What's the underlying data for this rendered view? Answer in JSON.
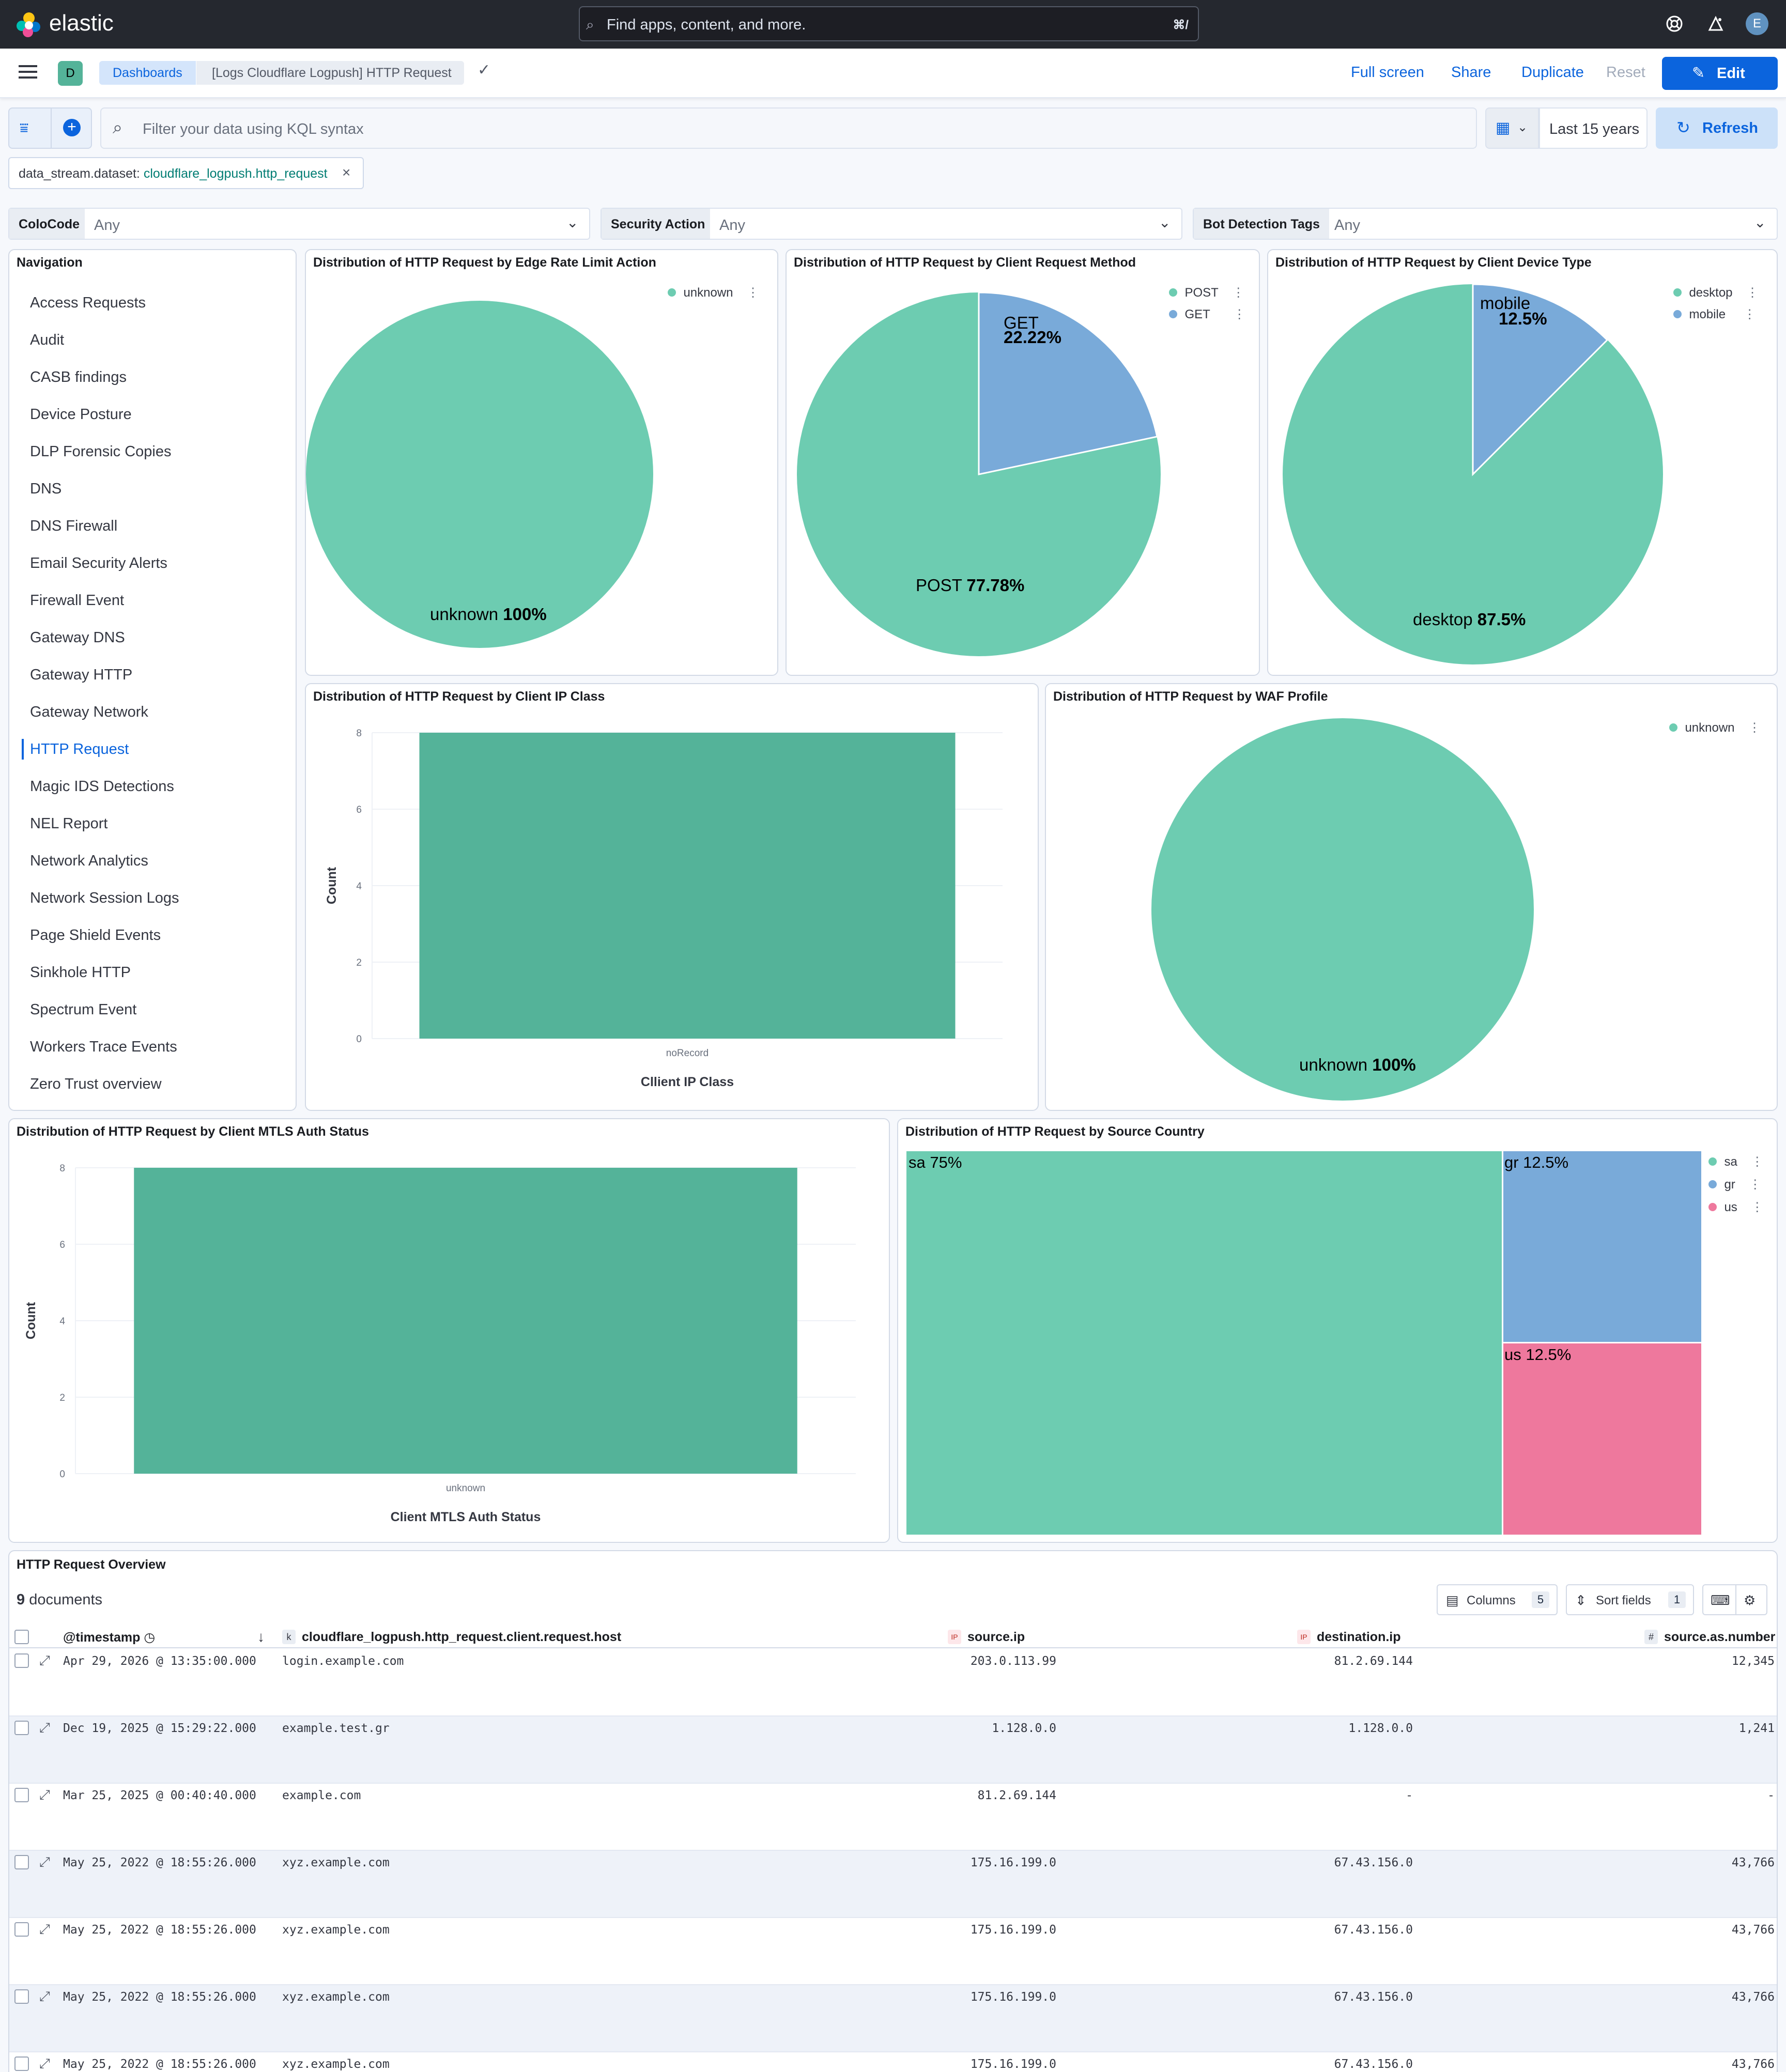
{
  "topbar": {
    "brand": "elastic",
    "search_placeholder": "Find apps, content, and more.",
    "search_shortcut": "⌘/",
    "user_initial": "E"
  },
  "subbar": {
    "space_initial": "D",
    "breadcrumb_root": "Dashboards",
    "breadcrumb_current": "[Logs Cloudflare Logpush] HTTP Request",
    "full_screen": "Full screen",
    "share": "Share",
    "duplicate": "Duplicate",
    "reset": "Reset",
    "edit": "Edit"
  },
  "query": {
    "placeholder": "Filter your data using KQL syntax",
    "time_range": "Last 15 years",
    "refresh": "Refresh",
    "filter_pill_key": "data_stream.dataset: ",
    "filter_pill_value": "cloudflare_logpush.http_request"
  },
  "controls": [
    {
      "label": "ColoCode",
      "value": "Any"
    },
    {
      "label": "Security Action",
      "value": "Any"
    },
    {
      "label": "Bot Detection Tags",
      "value": "Any"
    }
  ],
  "navigation": {
    "title": "Navigation",
    "active": "HTTP Request",
    "items": [
      "Access Requests",
      "Audit",
      "CASB findings",
      "Device Posture",
      "DLP Forensic Copies",
      "DNS",
      "DNS Firewall",
      "Email Security Alerts",
      "Firewall Event",
      "Gateway DNS",
      "Gateway HTTP",
      "Gateway Network",
      "HTTP Request",
      "Magic IDS Detections",
      "NEL Report",
      "Network Analytics",
      "Network Session Logs",
      "Page Shield Events",
      "Sinkhole HTTP",
      "Spectrum Event",
      "Workers Trace Events",
      "Zero Trust overview"
    ]
  },
  "colors": {
    "green": "#6dccb1",
    "blue": "#79aad9",
    "pink": "#ee789d",
    "bar": "#54b399",
    "accent": "#0b64dd"
  },
  "chart_data": [
    {
      "type": "pie",
      "title": "Distribution of HTTP Request by Edge Rate Limit Action",
      "labels": [
        "unknown"
      ],
      "values": [
        100
      ],
      "slice_texts": [
        "unknown 100%"
      ]
    },
    {
      "type": "pie",
      "title": "Distribution of HTTP Request by Client Request Method",
      "labels": [
        "POST",
        "GET"
      ],
      "values": [
        77.78,
        22.22
      ],
      "slice_texts": [
        "POST 77.78%",
        "GET 22.22%"
      ]
    },
    {
      "type": "pie",
      "title": "Distribution of HTTP Request by Client Device Type",
      "labels": [
        "desktop",
        "mobile"
      ],
      "values": [
        87.5,
        12.5
      ],
      "slice_texts": [
        "desktop 87.5%",
        "mobile 12.5%"
      ]
    },
    {
      "type": "bar",
      "title": "Distribution of HTTP Request by Client IP Class",
      "categories": [
        "noRecord"
      ],
      "values": [
        8
      ],
      "xlabel": "Cllient IP Class",
      "ylabel": "Count",
      "ylim": [
        0,
        8
      ],
      "yticks": [
        "0",
        "2",
        "4",
        "6",
        "8"
      ]
    },
    {
      "type": "pie",
      "title": "Distribution of HTTP Request by WAF Profile",
      "labels": [
        "unknown"
      ],
      "values": [
        100
      ],
      "slice_texts": [
        "unknown 100%"
      ]
    },
    {
      "type": "bar",
      "title": "Distribution of HTTP Request by Client MTLS Auth Status",
      "categories": [
        "unknown"
      ],
      "values": [
        8
      ],
      "xlabel": "Client MTLS Auth Status",
      "ylabel": "Count",
      "ylim": [
        0,
        8
      ],
      "yticks": [
        "0",
        "2",
        "4",
        "6",
        "8"
      ]
    },
    {
      "type": "treemap",
      "title": "Distribution of HTTP Request by Source Country",
      "labels": [
        "sa",
        "gr",
        "us"
      ],
      "values": [
        75,
        12.5,
        12.5
      ],
      "tile_texts": [
        "sa 75%",
        "gr 12.5%",
        "us 12.5%"
      ]
    }
  ],
  "table": {
    "title": "HTTP Request Overview",
    "doc_count": "9",
    "doc_label": " documents",
    "columns_btn": "Columns",
    "columns_count": "5",
    "sort_btn": "Sort fields",
    "sort_count": "1",
    "headers": [
      "@timestamp",
      "cloudflare_logpush.http_request.client.request.host",
      "source.ip",
      "destination.ip",
      "source.as.number"
    ],
    "header_badges": [
      "k",
      "IP",
      "IP",
      "#"
    ],
    "rows": [
      [
        "Apr 29, 2026 @ 13:35:00.000",
        "login.example.com",
        "203.0.113.99",
        "81.2.69.144",
        "12,345"
      ],
      [
        "Dec 19, 2025 @ 15:29:22.000",
        "example.test.gr",
        "1.128.0.0",
        "1.128.0.0",
        "1,241"
      ],
      [
        "Mar 25, 2025 @ 00:40:40.000",
        "example.com",
        "81.2.69.144",
        "-",
        "-"
      ],
      [
        "May 25, 2022 @ 18:55:26.000",
        "xyz.example.com",
        "175.16.199.0",
        "67.43.156.0",
        "43,766"
      ],
      [
        "May 25, 2022 @ 18:55:26.000",
        "xyz.example.com",
        "175.16.199.0",
        "67.43.156.0",
        "43,766"
      ],
      [
        "May 25, 2022 @ 18:55:26.000",
        "xyz.example.com",
        "175.16.199.0",
        "67.43.156.0",
        "43,766"
      ],
      [
        "May 25, 2022 @ 18:55:26.000",
        "xyz.example.com",
        "175.16.199.0",
        "67.43.156.0",
        "43,766"
      ]
    ]
  }
}
